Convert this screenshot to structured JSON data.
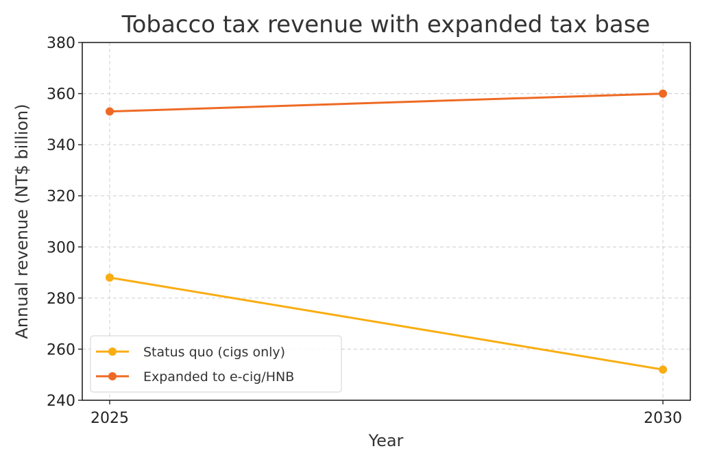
{
  "chart_data": {
    "type": "line",
    "title": "Tobacco tax revenue with expanded tax base",
    "xlabel": "Year",
    "ylabel": "Annual revenue (NT$ billion)",
    "x": [
      2025,
      2030
    ],
    "x_tick_labels": [
      "2025",
      "2030"
    ],
    "ylim": [
      240,
      380
    ],
    "y_ticks": [
      240,
      260,
      280,
      300,
      320,
      340,
      360,
      380
    ],
    "y_tick_labels": [
      "240",
      "260",
      "280",
      "300",
      "320",
      "340",
      "360",
      "380"
    ],
    "grid": true,
    "legend_position": "bottom-left",
    "series": [
      {
        "name": "Status quo (cigs only)",
        "values": [
          288,
          252
        ],
        "color": "#f9ad12"
      },
      {
        "name": "Expanded to e-cig/HNB",
        "values": [
          353,
          360
        ],
        "color": "#ee6a24"
      }
    ]
  }
}
